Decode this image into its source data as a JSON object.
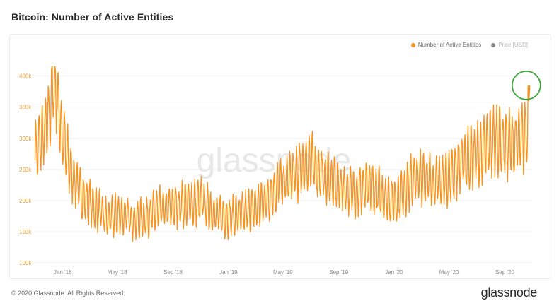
{
  "header": {
    "title": "Bitcoin: Number of Active Entities"
  },
  "legend": {
    "items": [
      {
        "label": "Number of Active Entities",
        "color": "#f7931a",
        "active": true
      },
      {
        "label": "Price [USD]",
        "color": "#8a8a8a",
        "active": false
      }
    ]
  },
  "watermark": "glassnode",
  "footer": {
    "copyright": "© 2020 Glassnode. All Rights Reserved.",
    "logo": "glassnode"
  },
  "highlight": {
    "shape": "circle",
    "color": "#3aa83a",
    "target_date": "2020-10-26"
  },
  "chart_data": {
    "type": "line",
    "title": "Bitcoin: Number of Active Entities",
    "xlabel": "",
    "ylabel": "",
    "ylim": [
      100000,
      420000
    ],
    "yticks": [
      {
        "value": 100000,
        "label": "100k"
      },
      {
        "value": 150000,
        "label": "150k"
      },
      {
        "value": 200000,
        "label": "200k"
      },
      {
        "value": 250000,
        "label": "250k"
      },
      {
        "value": 300000,
        "label": "300k"
      },
      {
        "value": 350000,
        "label": "350k"
      },
      {
        "value": 400000,
        "label": "400k"
      }
    ],
    "xlim": [
      "2017-10-28",
      "2020-10-31"
    ],
    "xticks": [
      {
        "date": "2018-01-01",
        "label": "Jan '18"
      },
      {
        "date": "2018-05-01",
        "label": "May '18"
      },
      {
        "date": "2018-09-01",
        "label": "Sep '18"
      },
      {
        "date": "2019-01-01",
        "label": "Jan '19"
      },
      {
        "date": "2019-05-01",
        "label": "May '19"
      },
      {
        "date": "2019-09-01",
        "label": "Sep '19"
      },
      {
        "date": "2020-01-01",
        "label": "Jan '20"
      },
      {
        "date": "2020-05-01",
        "label": "May '20"
      },
      {
        "date": "2020-09-01",
        "label": "Sep '20"
      }
    ],
    "grid": true,
    "legend_position": "top-right",
    "series": [
      {
        "name": "Number of Active Entities",
        "color": "#f7931a",
        "points": [
          [
            "2017-11-01",
            280000
          ],
          [
            "2017-11-15",
            295000
          ],
          [
            "2017-12-01",
            330000
          ],
          [
            "2017-12-10",
            385000
          ],
          [
            "2017-12-18",
            380000
          ],
          [
            "2017-12-28",
            320000
          ],
          [
            "2018-01-05",
            290000
          ],
          [
            "2018-01-18",
            250000
          ],
          [
            "2018-02-01",
            225000
          ],
          [
            "2018-02-15",
            205000
          ],
          [
            "2018-03-01",
            195000
          ],
          [
            "2018-03-20",
            185000
          ],
          [
            "2018-04-10",
            170000
          ],
          [
            "2018-05-01",
            178000
          ],
          [
            "2018-05-20",
            175000
          ],
          [
            "2018-06-10",
            168000
          ],
          [
            "2018-07-01",
            172000
          ],
          [
            "2018-07-25",
            185000
          ],
          [
            "2018-08-20",
            188000
          ],
          [
            "2018-09-15",
            192000
          ],
          [
            "2018-10-10",
            195000
          ],
          [
            "2018-11-05",
            200000
          ],
          [
            "2018-11-25",
            182000
          ],
          [
            "2018-12-15",
            175000
          ],
          [
            "2019-01-05",
            172000
          ],
          [
            "2019-01-25",
            178000
          ],
          [
            "2019-02-20",
            185000
          ],
          [
            "2019-03-15",
            195000
          ],
          [
            "2019-04-05",
            210000
          ],
          [
            "2019-04-25",
            225000
          ],
          [
            "2019-05-20",
            240000
          ],
          [
            "2019-06-10",
            250000
          ],
          [
            "2019-06-28",
            265000
          ],
          [
            "2019-07-15",
            248000
          ],
          [
            "2019-08-05",
            235000
          ],
          [
            "2019-08-25",
            228000
          ],
          [
            "2019-09-15",
            220000
          ],
          [
            "2019-10-10",
            212000
          ],
          [
            "2019-11-01",
            220000
          ],
          [
            "2019-11-25",
            215000
          ],
          [
            "2019-12-15",
            205000
          ],
          [
            "2020-01-05",
            200000
          ],
          [
            "2020-01-25",
            218000
          ],
          [
            "2020-02-15",
            235000
          ],
          [
            "2020-03-05",
            240000
          ],
          [
            "2020-03-25",
            230000
          ],
          [
            "2020-04-15",
            232000
          ],
          [
            "2020-05-05",
            240000
          ],
          [
            "2020-05-25",
            258000
          ],
          [
            "2020-06-15",
            270000
          ],
          [
            "2020-07-05",
            275000
          ],
          [
            "2020-07-25",
            288000
          ],
          [
            "2020-08-15",
            300000
          ],
          [
            "2020-09-05",
            290000
          ],
          [
            "2020-09-25",
            292000
          ],
          [
            "2020-10-10",
            300000
          ],
          [
            "2020-10-20",
            310000
          ],
          [
            "2020-10-26",
            385000
          ]
        ]
      }
    ]
  }
}
